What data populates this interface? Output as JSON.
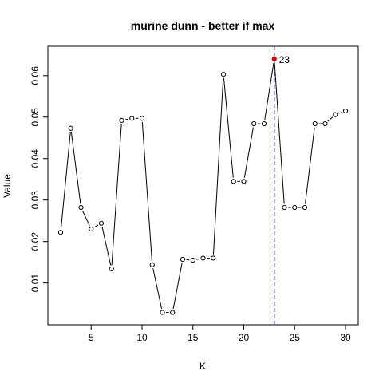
{
  "chart_data": {
    "type": "line",
    "title": "murine dunn - better if  max",
    "xlabel": "K",
    "ylabel": "Value",
    "xlim": [
      2,
      30
    ],
    "ylim": [
      0.003,
      0.064
    ],
    "xticks": [
      5,
      10,
      15,
      20,
      25,
      30
    ],
    "yticks": [
      0.01,
      0.02,
      0.03,
      0.04,
      0.05,
      0.06
    ],
    "ytick_labels": [
      "0.01",
      "0.02",
      "0.03",
      "0.04",
      "0.05",
      "0.06"
    ],
    "x": [
      2,
      3,
      4,
      5,
      6,
      7,
      8,
      9,
      10,
      11,
      12,
      13,
      14,
      15,
      16,
      17,
      18,
      19,
      20,
      21,
      22,
      23,
      24,
      25,
      26,
      27,
      28,
      29,
      30
    ],
    "values": [
      0.0222,
      0.0473,
      0.0282,
      0.023,
      0.0244,
      0.0134,
      0.0492,
      0.0497,
      0.0497,
      0.0144,
      0.0029,
      0.0029,
      0.0157,
      0.0155,
      0.016,
      0.016,
      0.0603,
      0.0345,
      0.0345,
      0.0484,
      0.0484,
      0.064,
      0.0282,
      0.0282,
      0.0282,
      0.0484,
      0.0484,
      0.0506,
      0.0515
    ],
    "series_color": "#000000",
    "highlight": {
      "x": 23,
      "label": "23",
      "point_color": "#e00000",
      "line_color": "#0000cc"
    },
    "grid": false,
    "legend": "none"
  }
}
